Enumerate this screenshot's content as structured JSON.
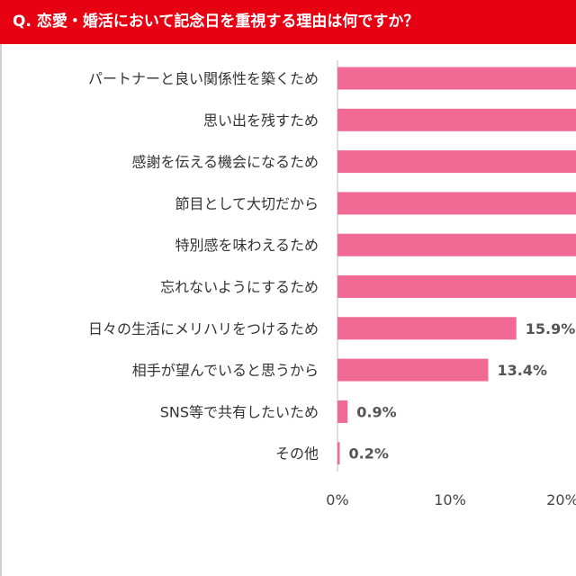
{
  "title": "Q. 恋愛・婚活において記念日を重視する理由は何ですか？",
  "colors": {
    "title_bg": "#e60012",
    "bar": "#f06a95",
    "axis": "#bdbdbd"
  },
  "chart_data": {
    "type": "bar",
    "orientation": "horizontal",
    "title": "Q. 恋愛・婚活において記念日を重視する理由は何ですか？",
    "categories": [
      "パートナーと良い関係性を築くため",
      "思い出を残すため",
      "感謝を伝える機会になるため",
      "節目として大切だから",
      "特別感を味わえるため",
      "忘れないようにするため",
      "日々の生活にメリハリをつけるため",
      "相手が望んでいると思うから",
      "SNS等で共有したいため",
      "その他"
    ],
    "values": [
      null,
      null,
      null,
      null,
      null,
      null,
      15.9,
      13.4,
      0.9,
      0.2
    ],
    "value_labels": [
      "",
      "",
      "",
      "",
      "",
      "",
      "15.9%",
      "13.4%",
      "0.9%",
      "0.2%"
    ],
    "x_ticks": [
      "0%",
      "10%",
      "20%"
    ],
    "xlim": [
      0,
      20
    ],
    "grid": false,
    "legend": "none"
  }
}
